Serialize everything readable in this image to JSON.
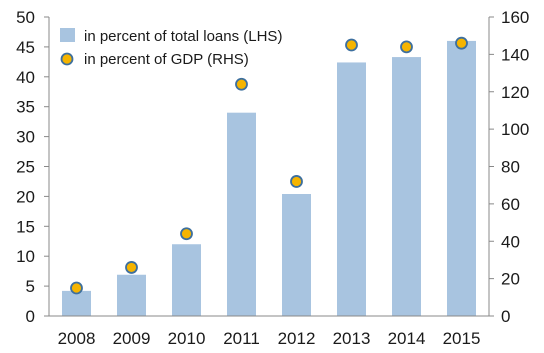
{
  "chart_data": {
    "type": "bar",
    "categories": [
      "2008",
      "2009",
      "2010",
      "2011",
      "2012",
      "2013",
      "2014",
      "2015"
    ],
    "series": [
      {
        "name": "in percent of total loans (LHS)",
        "type": "bar",
        "axis": "left",
        "color": "#a8c4e0",
        "values": [
          4.2,
          6.9,
          12.0,
          34.0,
          20.4,
          42.4,
          43.3,
          46.0
        ]
      },
      {
        "name": "in percent of GDP (RHS)",
        "type": "marker",
        "axis": "right",
        "color": "#f5b400",
        "outline": "#3d6f9e",
        "values": [
          15,
          26,
          44,
          124,
          72,
          145,
          144,
          146
        ]
      }
    ],
    "y_left": {
      "range": [
        0,
        50
      ],
      "ticks": [
        "0",
        "5",
        "10",
        "15",
        "20",
        "25",
        "30",
        "35",
        "40",
        "45",
        "50"
      ]
    },
    "y_right": {
      "range": [
        0,
        160
      ],
      "ticks": [
        "0",
        "20",
        "40",
        "60",
        "80",
        "100",
        "120",
        "140",
        "160"
      ]
    },
    "legend_position": "top-left",
    "grid": false
  }
}
